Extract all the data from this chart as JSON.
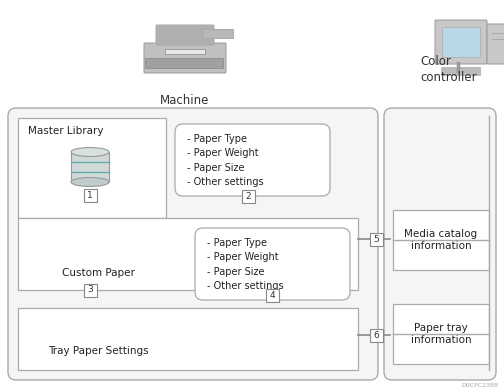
{
  "bg_color": "#ffffff",
  "border_light": "#aaaaaa",
  "border_dark": "#888888",
  "arrow_color": "#666666",
  "text_color": "#222222",
  "machine_label": "Machine",
  "color_controller_label": "Color\ncontroller",
  "master_library_label": "Master Library",
  "custom_paper_label": "Custom Paper",
  "tray_paper_settings_label": "Tray Paper Settings",
  "media_catalog_label": "Media catalog\ninformation",
  "paper_tray_label": "Paper tray\ninformation",
  "settings_box1": "- Paper Type\n- Paper Weight\n- Paper Size\n- Other settings",
  "settings_box2": "- Paper Type\n- Paper Weight\n- Paper Size\n- Other settings",
  "step_labels": [
    "1",
    "2",
    "3",
    "4",
    "5",
    "6"
  ],
  "watermark": "D0CPC2388"
}
